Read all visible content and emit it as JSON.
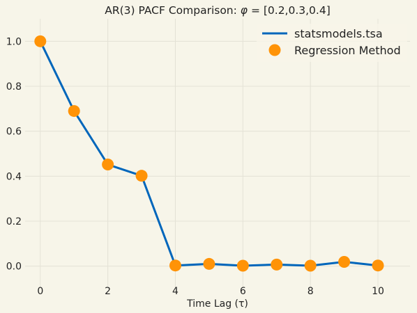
{
  "chart_data": {
    "type": "line",
    "title": "AR(3) PACF Comparison: φ = [0.2,0.3,0.4]",
    "title_prefix": "AR(3) PACF Comparison: ",
    "title_phi": "φ",
    "title_values": " = [0.2,0.3,0.4]",
    "xlabel": "Time Lag (τ)",
    "ylabel": "",
    "xlim": [
      -0.45,
      10.95
    ],
    "ylim": [
      -0.1,
      1.1
    ],
    "xticks": [
      0,
      2,
      4,
      6,
      8,
      10
    ],
    "yticks": [
      0.0,
      0.2,
      0.4,
      0.6,
      0.8,
      1.0
    ],
    "grid": true,
    "legend_position": "top-right",
    "x": [
      0,
      1,
      2,
      3,
      4,
      5,
      6,
      7,
      8,
      9,
      10
    ],
    "series": [
      {
        "name": "statsmodels.tsa",
        "kind": "line",
        "color": "#0066bb",
        "values": [
          1.0,
          0.69,
          0.452,
          0.402,
          0.003,
          0.01,
          0.002,
          0.007,
          0.002,
          0.019,
          0.003
        ]
      },
      {
        "name": "Regression Method",
        "kind": "marker",
        "color": "#ff9307",
        "values": [
          1.0,
          0.69,
          0.452,
          0.402,
          0.003,
          0.01,
          0.002,
          0.007,
          0.002,
          0.019,
          0.003
        ]
      }
    ]
  },
  "colors": {
    "background": "#f7f5e9",
    "grid": "#e4e2d6",
    "text": "#222222"
  }
}
